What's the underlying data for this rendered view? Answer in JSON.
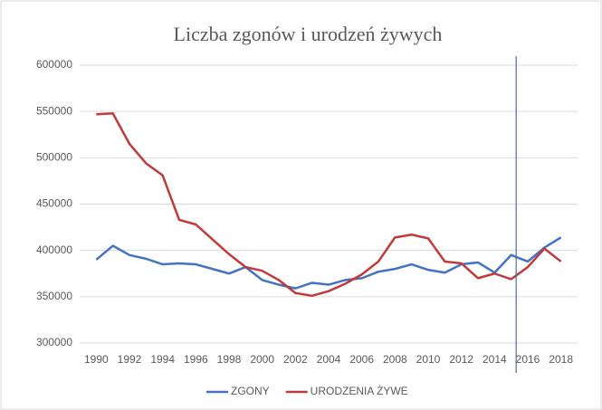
{
  "chart_data": {
    "type": "line",
    "title": "Liczba zgonów i urodzeń żywych",
    "x": [
      1990,
      1991,
      1992,
      1993,
      1994,
      1995,
      1996,
      1997,
      1998,
      1999,
      2000,
      2001,
      2002,
      2003,
      2004,
      2005,
      2006,
      2007,
      2008,
      2009,
      2010,
      2011,
      2012,
      2013,
      2014,
      2015,
      2016,
      2017,
      2018
    ],
    "series": [
      {
        "name": "ZGONY",
        "color": "#4472c4",
        "values": [
          390000,
          405000,
          395000,
          391000,
          385000,
          386000,
          385000,
          380000,
          375000,
          382000,
          368000,
          363000,
          359000,
          365000,
          363000,
          368000,
          370000,
          377000,
          380000,
          385000,
          379000,
          376000,
          385000,
          387000,
          376000,
          395000,
          388000,
          403000,
          414000
        ]
      },
      {
        "name": "URODZENIA ŻYWE",
        "color": "#c0393b",
        "values": [
          547000,
          548000,
          515000,
          494000,
          481000,
          433000,
          428000,
          412000,
          396000,
          382000,
          378000,
          368000,
          354000,
          351000,
          356000,
          364000,
          374000,
          388000,
          414000,
          417000,
          413000,
          388000,
          386000,
          370000,
          375000,
          369000,
          382000,
          402000,
          388000
        ]
      }
    ],
    "xlim": [
      1989,
      2019
    ],
    "xticks": [
      1990,
      1992,
      1994,
      1996,
      1998,
      2000,
      2002,
      2004,
      2006,
      2008,
      2010,
      2012,
      2014,
      2016,
      2018
    ],
    "ylim": [
      300000,
      600000
    ],
    "yticks": [
      300000,
      350000,
      400000,
      450000,
      500000,
      550000,
      600000
    ],
    "grid": true,
    "reference_line": {
      "x": 2015.3,
      "color": "#4a6fb0"
    },
    "legend": "bottom"
  }
}
